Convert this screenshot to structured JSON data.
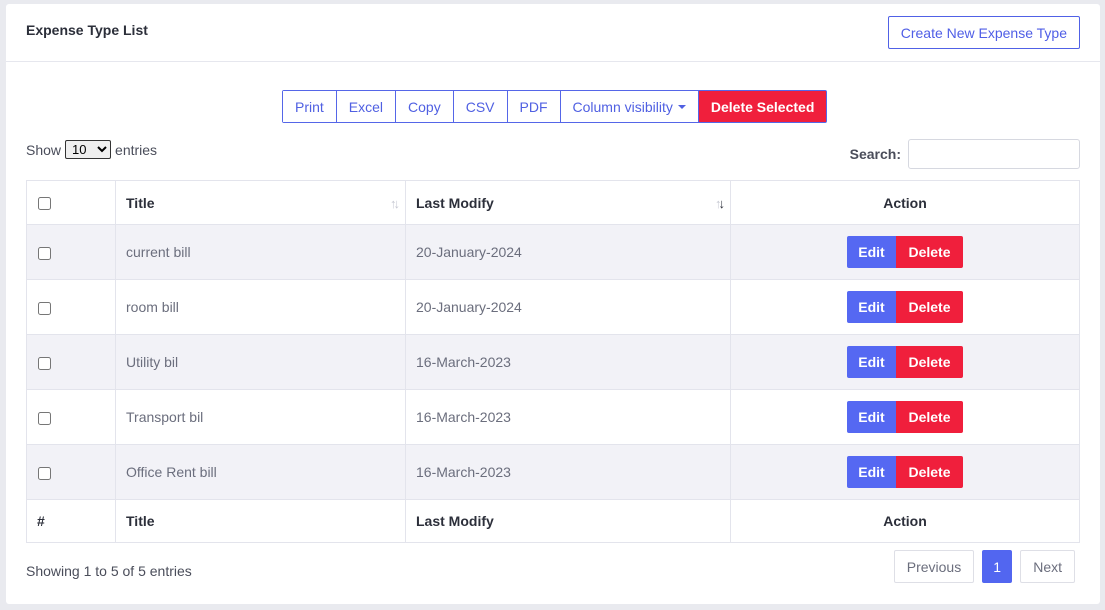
{
  "header": {
    "title": "Expense Type List",
    "create_label": "Create New Expense Type"
  },
  "toolbar": {
    "buttons": [
      "Print",
      "Excel",
      "Copy",
      "CSV",
      "PDF",
      "Column visibility"
    ],
    "delete_selected": "Delete Selected"
  },
  "length": {
    "show": "Show",
    "value": "10",
    "entries": "entries"
  },
  "search": {
    "label": "Search:",
    "value": ""
  },
  "table": {
    "headers": {
      "title": "Title",
      "last_modify": "Last Modify",
      "action": "Action"
    },
    "rows": [
      {
        "title": "current bill",
        "last_modify": "20-January-2024"
      },
      {
        "title": "room bill",
        "last_modify": "20-January-2024"
      },
      {
        "title": "Utility bil",
        "last_modify": "16-March-2023"
      },
      {
        "title": "Transport bil",
        "last_modify": "16-March-2023"
      },
      {
        "title": "Office Rent bill",
        "last_modify": "16-March-2023"
      }
    ],
    "action_labels": {
      "edit": "Edit",
      "delete": "Delete"
    },
    "footer": {
      "hash": "#",
      "title": "Title",
      "last_modify": "Last Modify",
      "action": "Action"
    }
  },
  "info": "Showing 1 to 5 of 5 entries",
  "pagination": {
    "previous": "Previous",
    "current": "1",
    "next": "Next"
  },
  "colors": {
    "primary": "#5266f0",
    "danger": "#f01f3c",
    "stripe": "#f2f2f7"
  }
}
